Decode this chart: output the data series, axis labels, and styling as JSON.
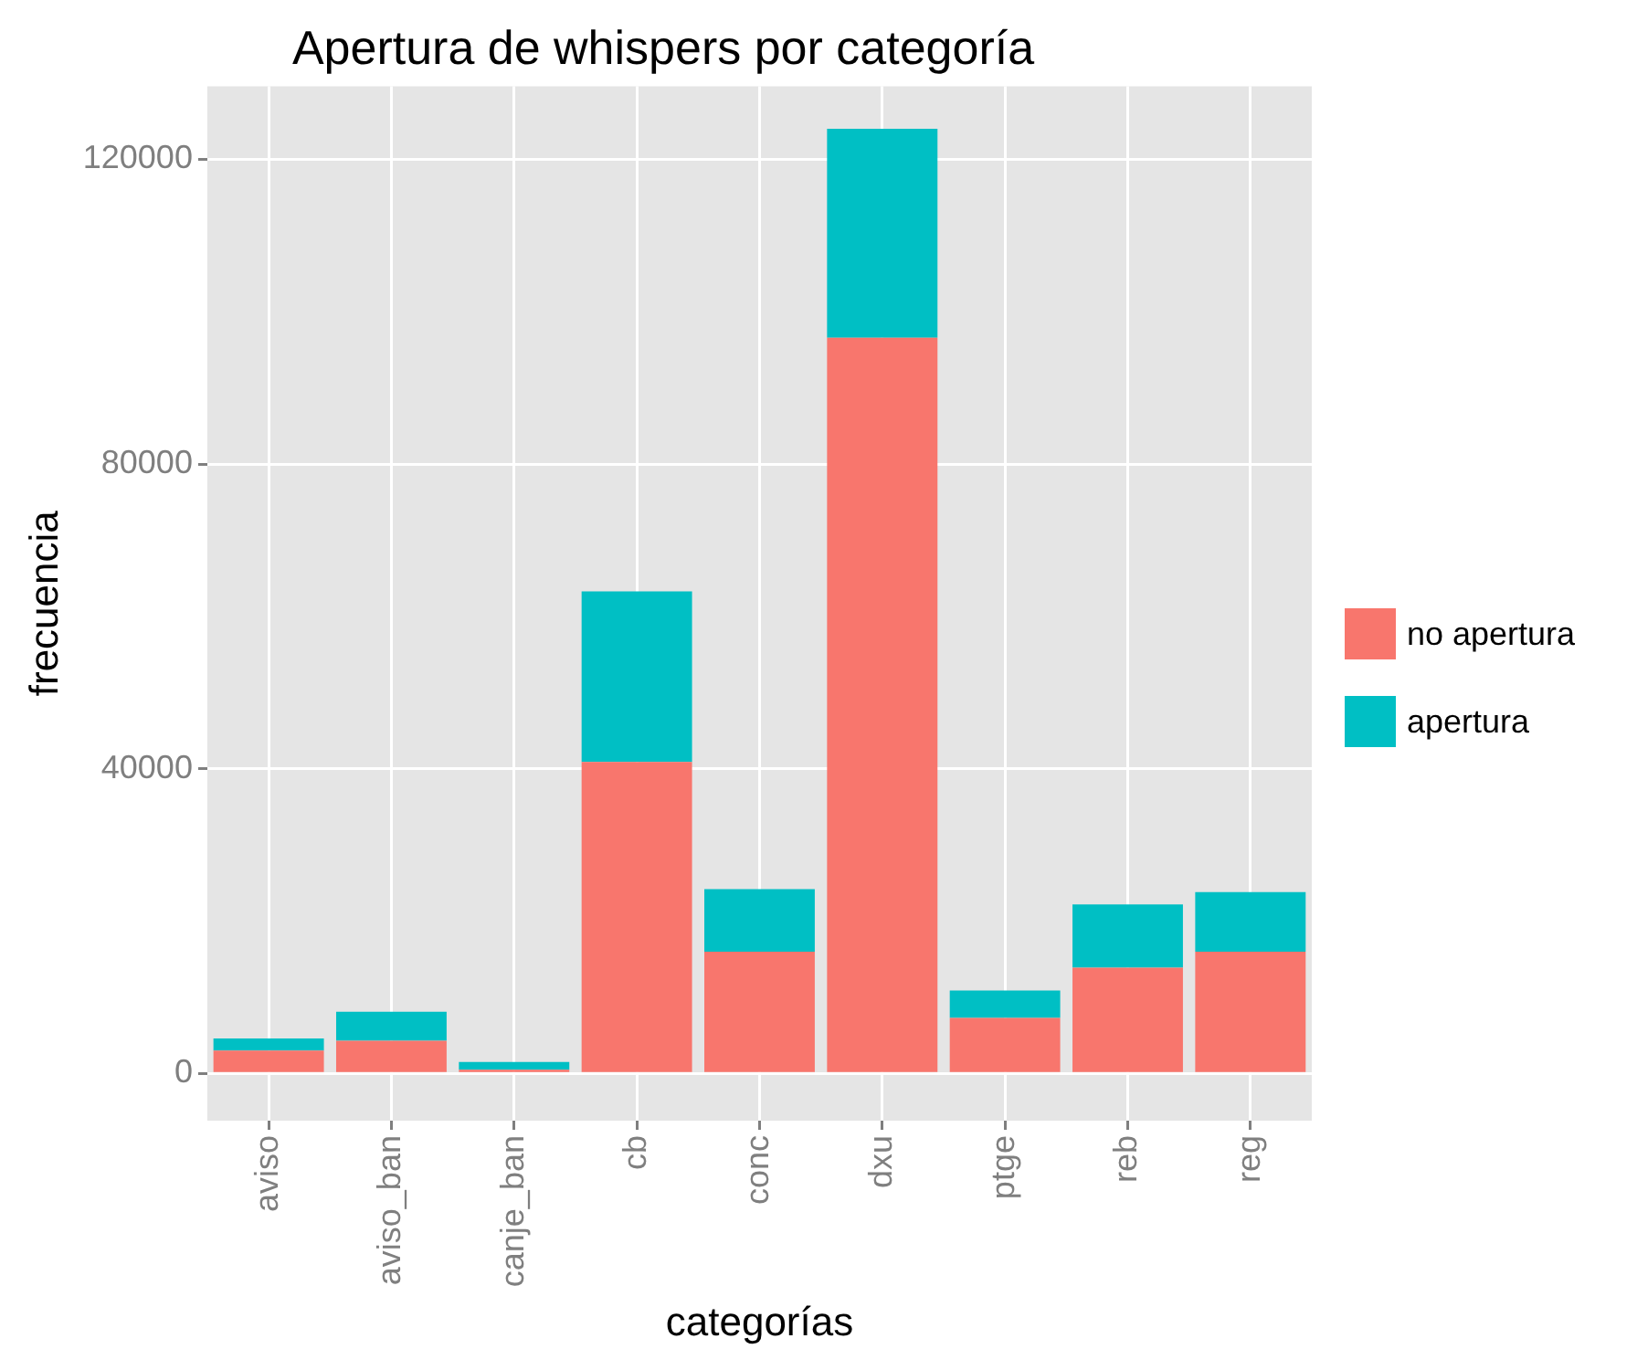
{
  "chart_data": {
    "type": "bar",
    "title": "Apertura de whispers por categoría",
    "xlabel": "categorías",
    "ylabel": "frecuencia",
    "categories": [
      "aviso",
      "aviso_ban",
      "canje_ban",
      "cb",
      "conc",
      "dxu",
      "ptge",
      "reb",
      "reg"
    ],
    "series": [
      {
        "name": "no apertura",
        "color": "#f8766d",
        "values": [
          3000,
          4300,
          500,
          40900,
          16000,
          96600,
          7300,
          13900,
          16000
        ]
      },
      {
        "name": "apertura",
        "color": "#00bfc4",
        "values": [
          1600,
          3800,
          1000,
          22400,
          8200,
          27400,
          3600,
          8300,
          7800
        ]
      }
    ],
    "stacked": true,
    "ylim": [
      -6200,
      129600
    ],
    "yticks": [
      0,
      40000,
      80000,
      120000
    ],
    "grid": true,
    "legend": "right"
  }
}
